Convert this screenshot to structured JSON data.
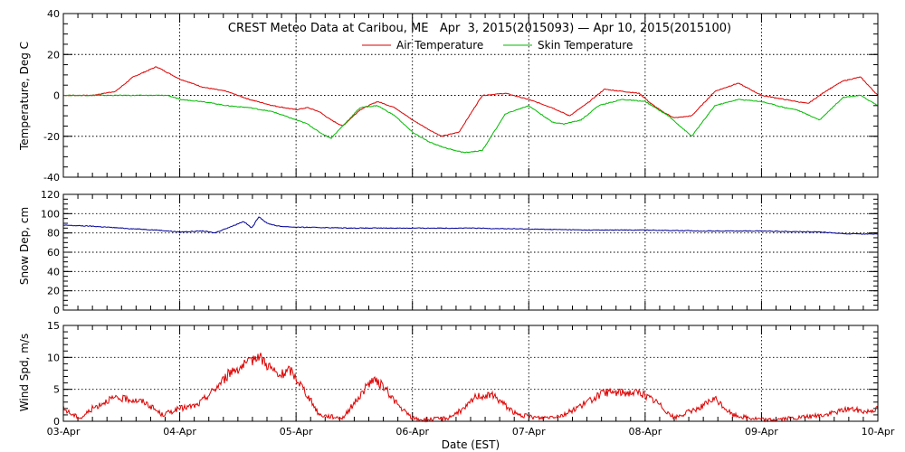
{
  "colors": {
    "air_temperature": "#dd0000",
    "skin_temperature": "#00bb00",
    "snow_depth": "#000099",
    "wind_speed": "#dd0000"
  },
  "chart_data": [
    {
      "type": "line",
      "title": "CREST Meteo Data at Caribou, ME   Apr  3, 2015(2015093) — Apr 10, 2015(2015100)",
      "ylabel": "Temperature, Deg C",
      "xlabel": "",
      "ylim": [
        -40,
        40
      ],
      "yticks": [
        -40,
        -20,
        0,
        20,
        40
      ],
      "grid": true,
      "legend": "top-center",
      "series": [
        {
          "name": "Air Temperature",
          "x": [
            0,
            0.25,
            0.45,
            0.6,
            0.8,
            1.0,
            1.2,
            1.4,
            1.6,
            1.8,
            2.0,
            2.1,
            2.2,
            2.3,
            2.4,
            2.55,
            2.7,
            2.85,
            3.0,
            3.15,
            3.25,
            3.4,
            3.6,
            3.8,
            4.0,
            4.2,
            4.35,
            4.5,
            4.65,
            4.8,
            4.95,
            5.05,
            5.15,
            5.25,
            5.4,
            5.6,
            5.8,
            6.0,
            6.2,
            6.4,
            6.55,
            6.7,
            6.85,
            7.0
          ],
          "values": [
            0,
            0,
            2,
            9,
            14,
            8,
            4,
            2,
            -2,
            -5,
            -7,
            -6,
            -8,
            -12,
            -15,
            -7,
            -3,
            -6,
            -12,
            -17,
            -20,
            -18,
            0,
            1,
            -2,
            -6,
            -10,
            -4,
            3,
            2,
            1,
            -4,
            -8,
            -11,
            -10,
            2,
            6,
            0,
            -2,
            -4,
            2,
            7,
            9,
            0
          ]
        },
        {
          "name": "Skin Temperature",
          "x": [
            0,
            0.5,
            0.9,
            1.0,
            1.2,
            1.4,
            1.6,
            1.8,
            2.0,
            2.1,
            2.2,
            2.3,
            2.4,
            2.55,
            2.7,
            2.85,
            3.0,
            3.15,
            3.3,
            3.45,
            3.6,
            3.8,
            4.0,
            4.2,
            4.3,
            4.45,
            4.6,
            4.8,
            5.0,
            5.2,
            5.4,
            5.6,
            5.8,
            6.0,
            6.2,
            6.3,
            6.5,
            6.7,
            6.85,
            7.0
          ],
          "values": [
            0,
            0,
            0,
            -2,
            -3,
            -5,
            -6,
            -8,
            -12,
            -14,
            -18,
            -21,
            -15,
            -6,
            -5,
            -10,
            -18,
            -23,
            -26,
            -28,
            -27,
            -9,
            -5,
            -13,
            -14,
            -12,
            -5,
            -2,
            -3,
            -10,
            -20,
            -5,
            -2,
            -3,
            -6,
            -7,
            -12,
            -1,
            0,
            -5
          ]
        }
      ]
    },
    {
      "type": "line",
      "ylabel": "Snow Dep, cm",
      "ylim": [
        0,
        120
      ],
      "yticks": [
        0,
        20,
        40,
        60,
        80,
        100,
        120
      ],
      "grid": true,
      "series": [
        {
          "x": [
            0,
            0.25,
            0.5,
            0.8,
            1.0,
            1.2,
            1.3,
            1.45,
            1.55,
            1.62,
            1.68,
            1.75,
            1.85,
            2.0,
            2.5,
            3.0,
            3.5,
            4.0,
            4.5,
            5.0,
            5.5,
            6.0,
            6.5,
            6.75,
            7.0
          ],
          "values": [
            88,
            87,
            85,
            83,
            81,
            82,
            80,
            87,
            92,
            85,
            97,
            90,
            87,
            86,
            85,
            85,
            85,
            84,
            83,
            83,
            82,
            82,
            81,
            79,
            79
          ]
        }
      ]
    },
    {
      "type": "line",
      "ylabel": "Wind Spd, m/s",
      "xlabel": "Date (EST)",
      "ylim": [
        0,
        15
      ],
      "yticks": [
        0,
        5,
        10,
        15
      ],
      "categories": [
        "03-Apr",
        "04-Apr",
        "05-Apr",
        "06-Apr",
        "07-Apr",
        "08-Apr",
        "09-Apr",
        "10-Apr"
      ],
      "grid": true,
      "series": [
        {
          "x": [
            0,
            0.08,
            0.15,
            0.25,
            0.4,
            0.55,
            0.7,
            0.85,
            1.0,
            1.15,
            1.3,
            1.45,
            1.6,
            1.66,
            1.75,
            1.85,
            1.95,
            2.05,
            2.2,
            2.4,
            2.55,
            2.65,
            2.75,
            2.9,
            3.0,
            3.1,
            3.3,
            3.45,
            3.55,
            3.7,
            3.9,
            4.1,
            4.3,
            4.5,
            4.65,
            4.8,
            4.95,
            5.1,
            5.25,
            5.45,
            5.6,
            5.75,
            5.9,
            6.05,
            6.3,
            6.55,
            6.75,
            6.9,
            7.0
          ],
          "values": [
            2,
            1,
            0.5,
            2,
            3.5,
            3.5,
            3,
            1,
            2,
            2.5,
            5,
            8,
            9,
            10.5,
            9,
            7,
            8,
            5.5,
            1,
            0.5,
            4,
            6.5,
            5.5,
            2,
            0.5,
            0.2,
            0.5,
            2,
            4,
            4,
            1,
            0.5,
            1,
            3,
            4.5,
            4.5,
            4.5,
            3,
            0.5,
            2,
            3.5,
            1,
            0.5,
            0.2,
            0.5,
            1,
            2,
            1.5,
            2
          ]
        }
      ]
    }
  ]
}
